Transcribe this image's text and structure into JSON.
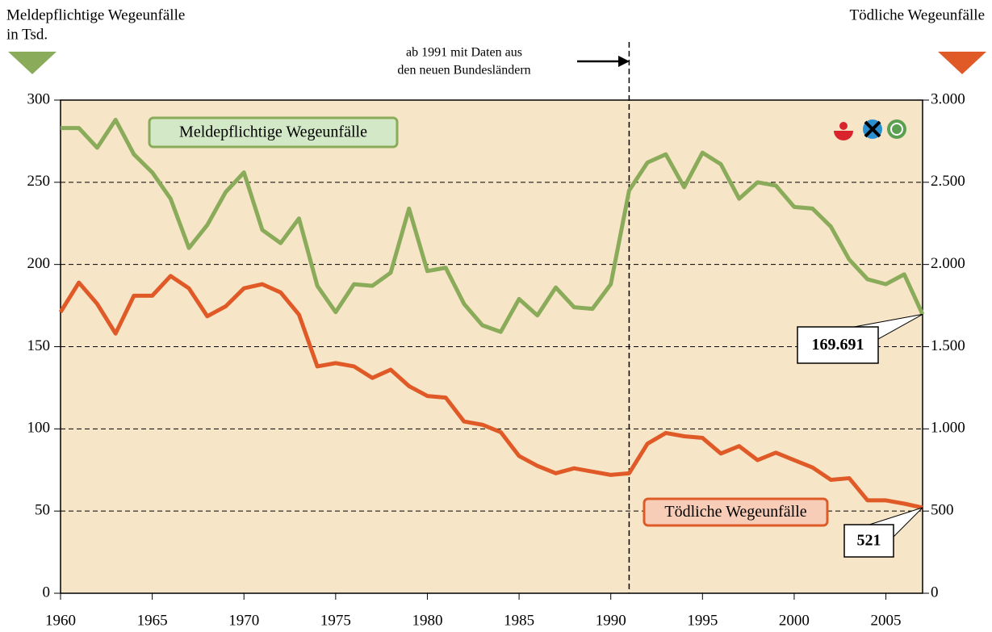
{
  "chart_data": {
    "type": "line",
    "y_label_lines": [
      "Meldepflichtige Wegeunfälle",
      "in Tsd."
    ],
    "y2_label": "Tödliche Wegeunfälle",
    "annotation": {
      "x": 1991,
      "lines": [
        "ab 1991 mit Daten aus",
        "den neuen Bundesländern"
      ]
    },
    "x": [
      1960,
      1961,
      1962,
      1963,
      1964,
      1965,
      1966,
      1967,
      1968,
      1969,
      1970,
      1971,
      1972,
      1973,
      1974,
      1975,
      1976,
      1977,
      1978,
      1979,
      1980,
      1981,
      1982,
      1983,
      1984,
      1985,
      1986,
      1987,
      1988,
      1989,
      1990,
      1991,
      1992,
      1993,
      1994,
      1995,
      1996,
      1997,
      1998,
      1999,
      2000,
      2001,
      2002,
      2003,
      2004,
      2005,
      2006,
      2007
    ],
    "xlim": [
      1960,
      2007
    ],
    "xticks": [
      1960,
      1965,
      1970,
      1975,
      1980,
      1985,
      1990,
      1995,
      2000,
      2005
    ],
    "ylim": [
      0,
      300
    ],
    "yticks": [
      0,
      50,
      100,
      150,
      200,
      250,
      300
    ],
    "y2lim": [
      0,
      3000
    ],
    "y2ticks": [
      {
        "value": 0,
        "label": "0"
      },
      {
        "value": 500,
        "label": "500"
      },
      {
        "value": 1000,
        "label": "1.000"
      },
      {
        "value": 1500,
        "label": "1.500"
      },
      {
        "value": 2000,
        "label": "2.000"
      },
      {
        "value": 2500,
        "label": "2.500"
      },
      {
        "value": 3000,
        "label": "3.000"
      }
    ],
    "grid": true,
    "series": [
      {
        "name": "Meldepflichtige Wegeunfälle",
        "color": "#8aab5a",
        "axis": "y",
        "values": [
          283,
          283,
          271,
          288,
          267,
          256,
          240,
          210,
          224,
          244,
          256,
          221,
          213,
          228,
          187,
          171,
          188,
          187,
          195,
          234,
          196,
          198,
          176,
          163,
          159,
          179,
          169,
          186,
          174,
          173,
          188,
          245,
          262,
          267,
          247,
          268,
          261,
          240,
          250,
          248,
          235,
          234,
          223,
          203,
          191,
          188,
          194,
          169.691
        ],
        "value_labels": [
          null,
          null,
          null,
          null,
          null,
          null,
          null,
          null,
          null,
          null,
          null,
          null,
          null,
          null,
          null,
          null,
          null,
          null,
          null,
          null,
          null,
          null,
          null,
          null,
          null,
          null,
          null,
          null,
          null,
          null,
          null,
          null,
          null,
          null,
          null,
          null,
          null,
          null,
          null,
          null,
          null,
          null,
          null,
          null,
          null,
          null,
          null,
          "169.691"
        ]
      },
      {
        "name": "Tödliche Wegeunfälle",
        "color": "#e05a28",
        "axis": "y2",
        "values": [
          1710,
          1890,
          1760,
          1580,
          1810,
          1810,
          1930,
          1855,
          1685,
          1745,
          1855,
          1880,
          1830,
          1695,
          1380,
          1400,
          1380,
          1310,
          1360,
          1260,
          1200,
          1190,
          1045,
          1025,
          980,
          835,
          775,
          730,
          760,
          740,
          720,
          730,
          910,
          975,
          955,
          945,
          850,
          895,
          810,
          855,
          810,
          765,
          690,
          700,
          565,
          565,
          545,
          521
        ],
        "value_labels": [
          null,
          null,
          null,
          null,
          null,
          null,
          null,
          null,
          null,
          null,
          null,
          null,
          null,
          null,
          null,
          null,
          null,
          null,
          null,
          null,
          null,
          null,
          null,
          null,
          null,
          null,
          null,
          null,
          null,
          null,
          null,
          null,
          null,
          null,
          null,
          null,
          null,
          null,
          null,
          null,
          null,
          null,
          null,
          null,
          null,
          null,
          null,
          "521"
        ]
      }
    ]
  }
}
